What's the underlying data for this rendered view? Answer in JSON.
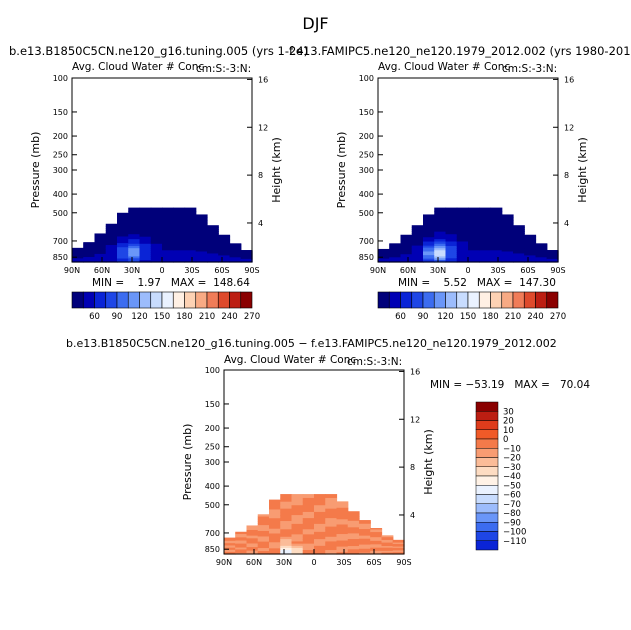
{
  "page": {
    "season": "DJF"
  },
  "panels": [
    {
      "id": "p1",
      "case_title": "b.e13.B1850C5CN.ne120_g16.tuning.005 (yrs 1-24)",
      "subtitle_left": "Avg. Cloud Water # Conc",
      "subtitle_right": "cm:S:-3:N:",
      "stats": "MIN =    1.97   MAX =  148.64"
    },
    {
      "id": "p2",
      "case_title": "f.e13.FAMIPC5.ne120_ne120.1979_2012.002 (yrs 1980-2012)",
      "subtitle_left": "Avg. Cloud Water # Conc",
      "subtitle_right": "cm:S:-3:N:",
      "stats": "MIN =    5.52   MAX =  147.30"
    },
    {
      "id": "p3",
      "case_title": "b.e13.B1850C5CN.ne120_g16.tuning.005 − f.e13.FAMIPC5.ne120_ne120.1979_2012.002",
      "subtitle_left": "Avg. Cloud Water # Conc",
      "subtitle_right": "cm:S:-3:N:",
      "stats": "MIN = −53.19   MAX =   70.04"
    }
  ],
  "axes": {
    "ylabel": "Pressure (mb)",
    "y2label": "Height (km)",
    "pressure_ticks": [
      "100",
      "150",
      "200",
      "250",
      "300",
      "400",
      "500",
      "700",
      "850"
    ],
    "height_ticks": [
      "16",
      "12",
      "8",
      "4"
    ],
    "lat_ticks": [
      "90N",
      "60N",
      "30N",
      "0",
      "30S",
      "60S",
      "90S"
    ]
  },
  "colors": {
    "abs_palette": [
      "#00007a",
      "#0000b4",
      "#0a24d6",
      "#1e46e6",
      "#3c6cf0",
      "#6a96f8",
      "#9cbcfc",
      "#c8dcfe",
      "#eaf2ff",
      "#fff0e4",
      "#fdd2b4",
      "#f8aa84",
      "#f07c58",
      "#de4a2c",
      "#bc1e12",
      "#8a0000"
    ],
    "diff_palette": [
      "#8a0000",
      "#bc1e12",
      "#de3c1c",
      "#f05a28",
      "#f47a4a",
      "#f89c72",
      "#fbbc98",
      "#fddcc2",
      "#fff2e6",
      "#eaf2ff",
      "#c8dcfe",
      "#9cbcfc",
      "#6a96f8",
      "#3c6cf0",
      "#1e46e6",
      "#0a24d6",
      "#0000b4",
      "#00007a"
    ]
  },
  "chart_data": [
    {
      "type": "heatmap",
      "title": "Avg. Cloud Water # Conc",
      "case": "b.e13.B1850C5CN.ne120_g16.tuning.005 (yrs 1-24)",
      "xlabel": "",
      "ylabel": "Pressure (mb)",
      "y2label": "Height (km)",
      "x_ticks": [
        "90N",
        "60N",
        "30N",
        "0",
        "30S",
        "60S",
        "90S"
      ],
      "y_ticks": [
        100,
        150,
        200,
        250,
        300,
        400,
        500,
        700,
        850
      ],
      "ylim": [
        850,
        100
      ],
      "min": 1.97,
      "max": 148.64,
      "colorbar_levels": [
        15,
        30,
        45,
        60,
        75,
        90,
        105,
        120,
        135,
        150,
        165,
        180,
        195,
        210,
        225,
        240,
        255,
        270
      ],
      "colorbar_labels": [
        "60",
        "90",
        "120",
        "150",
        "180",
        "210",
        "240",
        "270"
      ],
      "field_cloud_top_mb": [
        760,
        710,
        640,
        570,
        500,
        470,
        470,
        470,
        470,
        470,
        470,
        510,
        580,
        650,
        720,
        780
      ],
      "field_peak_lat": "30N"
    },
    {
      "type": "heatmap",
      "title": "Avg. Cloud Water # Conc",
      "case": "f.e13.FAMIPC5.ne120_ne120.1979_2012.002 (yrs 1980-2012)",
      "xlabel": "",
      "ylabel": "Pressure (mb)",
      "y2label": "Height (km)",
      "x_ticks": [
        "90N",
        "60N",
        "30N",
        "0",
        "30S",
        "60S",
        "90S"
      ],
      "y_ticks": [
        100,
        150,
        200,
        250,
        300,
        400,
        500,
        700,
        850
      ],
      "ylim": [
        850,
        100
      ],
      "min": 5.52,
      "max": 147.3,
      "colorbar_levels": [
        15,
        30,
        45,
        60,
        75,
        90,
        105,
        120,
        135,
        150,
        165,
        180,
        195,
        210,
        225,
        240,
        255,
        270
      ],
      "colorbar_labels": [
        "60",
        "90",
        "120",
        "150",
        "180",
        "210",
        "240",
        "270"
      ],
      "field_cloud_top_mb": [
        770,
        720,
        650,
        580,
        510,
        470,
        470,
        470,
        470,
        470,
        470,
        510,
        580,
        650,
        720,
        780
      ],
      "field_peak_lat": "30N"
    },
    {
      "type": "heatmap",
      "title": "Avg. Cloud Water # Conc",
      "case": "b.e13.B1850C5CN.ne120_g16.tuning.005 − f.e13.FAMIPC5.ne120_ne120.1979_2012.002",
      "xlabel": "",
      "ylabel": "Pressure (mb)",
      "y2label": "Height (km)",
      "x_ticks": [
        "90N",
        "60N",
        "30N",
        "0",
        "30S",
        "60S",
        "90S"
      ],
      "y_ticks": [
        100,
        150,
        200,
        250,
        300,
        400,
        500,
        700,
        850
      ],
      "ylim": [
        850,
        100
      ],
      "min": -53.19,
      "max": 70.04,
      "colorbar_levels": [
        30,
        20,
        10,
        0,
        -10,
        -20,
        -30,
        -40,
        -50,
        -60,
        -70,
        -80,
        -90,
        -100,
        -110
      ],
      "colorbar_labels": [
        "30",
        "20",
        "10",
        "0",
        "−10",
        "−20",
        "−30",
        "−40",
        "−50",
        "−60",
        "−70",
        "−80",
        "−90",
        "−100",
        "−110"
      ],
      "field_cloud_top_mb": [
        740,
        690,
        640,
        560,
        470,
        440,
        440,
        440,
        440,
        440,
        480,
        540,
        600,
        660,
        720,
        760
      ]
    }
  ]
}
